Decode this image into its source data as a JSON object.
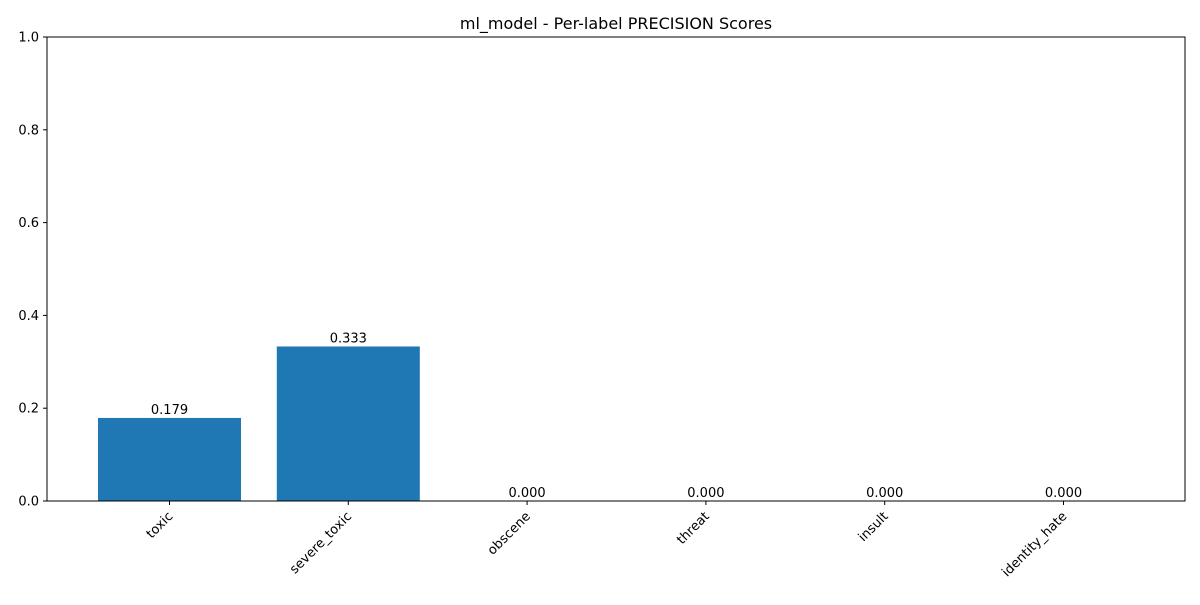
{
  "chart_data": {
    "type": "bar",
    "title": "ml_model - Per-label PRECISION Scores",
    "xlabel": "",
    "ylabel": "",
    "categories": [
      "toxic",
      "severe_toxic",
      "obscene",
      "threat",
      "insult",
      "identity_hate"
    ],
    "values": [
      0.179,
      0.333,
      0.0,
      0.0,
      0.0,
      0.0
    ],
    "value_labels": [
      "0.179",
      "0.333",
      "0.000",
      "0.000",
      "0.000",
      "0.000"
    ],
    "ylim": [
      0,
      1.0
    ],
    "yticks": [
      0.0,
      0.2,
      0.4,
      0.6,
      0.8,
      1.0
    ],
    "ytick_labels": [
      "0.0",
      "0.2",
      "0.4",
      "0.6",
      "0.8",
      "1.0"
    ],
    "xtick_rotation_deg": 45,
    "grid": false,
    "legend": "none",
    "bar_color": "#1f77b4"
  }
}
